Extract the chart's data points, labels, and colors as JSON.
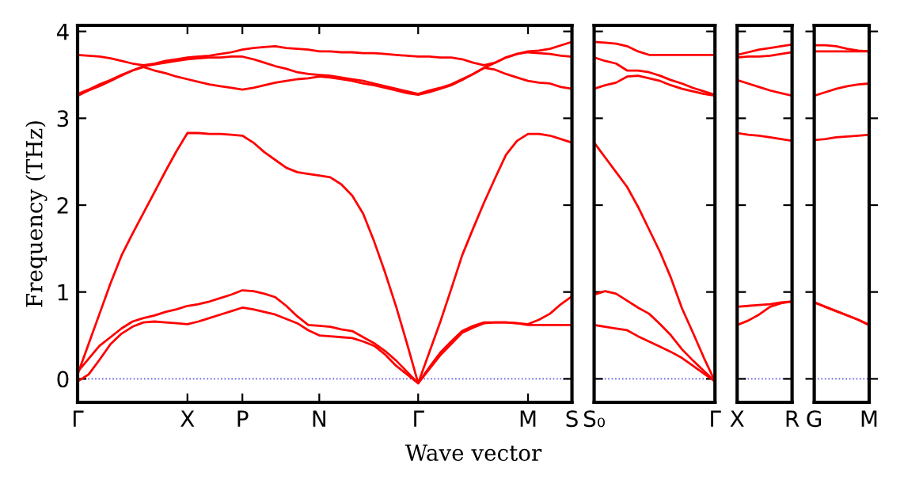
{
  "chart_data": [
    {
      "type": "line",
      "ylabel": "Frequency (THz)",
      "xlabel": "Wave vector",
      "categories": [
        "Γ",
        null,
        null,
        null,
        null,
        null,
        null,
        null,
        null,
        null,
        "X",
        null,
        null,
        null,
        null,
        "P",
        null,
        null,
        null,
        null,
        null,
        null,
        "N",
        null,
        null,
        null,
        null,
        null,
        null,
        null,
        null,
        "Γ",
        null,
        null,
        null,
        null,
        null,
        null,
        null,
        null,
        null,
        "M",
        null,
        null,
        null,
        "S"
      ],
      "ylim": [
        -0.27,
        4.07
      ],
      "yticks": [
        0,
        1,
        2,
        3,
        4
      ],
      "grid": false,
      "legend": false,
      "marker": "none",
      "line_style": "solid",
      "ref_lines": [
        {
          "axis": "y",
          "value": 0,
          "color": "#5555ee",
          "line_style": "dotted"
        }
      ],
      "series": [
        {
          "color": "#ff0000",
          "values": [
            -0.03,
            0.05,
            0.22,
            0.4,
            0.52,
            0.6,
            0.65,
            0.66,
            0.65,
            0.64,
            0.63,
            0.66,
            0.7,
            0.74,
            0.78,
            0.82,
            0.8,
            0.77,
            0.74,
            0.69,
            0.64,
            0.56,
            0.5,
            0.49,
            0.48,
            0.47,
            0.43,
            0.38,
            0.28,
            0.15,
            0.05,
            -0.05,
            0.11,
            0.27,
            0.4,
            0.53,
            0.59,
            0.64,
            0.65,
            0.65,
            0.64,
            0.62,
            0.62,
            0.62,
            0.62,
            0.62
          ]
        },
        {
          "color": "#ff0000",
          "values": [
            0.08,
            0.23,
            0.38,
            0.48,
            0.58,
            0.66,
            0.7,
            0.73,
            0.77,
            0.8,
            0.84,
            0.86,
            0.89,
            0.93,
            0.97,
            1.02,
            1.01,
            0.98,
            0.94,
            0.84,
            0.72,
            0.62,
            0.61,
            0.6,
            0.57,
            0.55,
            0.48,
            0.41,
            0.32,
            0.21,
            0.08,
            -0.05,
            0.13,
            0.3,
            0.43,
            0.55,
            0.61,
            0.65,
            0.65,
            0.65,
            0.64,
            0.63,
            0.68,
            0.75,
            0.86,
            0.95
          ]
        },
        {
          "color": "#ff0000",
          "values": [
            0.05,
            0.4,
            0.75,
            1.1,
            1.42,
            1.67,
            1.91,
            2.15,
            2.39,
            2.62,
            2.83,
            2.83,
            2.82,
            2.82,
            2.81,
            2.8,
            2.72,
            2.61,
            2.52,
            2.43,
            2.38,
            2.36,
            2.34,
            2.32,
            2.24,
            2.11,
            1.9,
            1.58,
            1.22,
            0.83,
            0.4,
            -0.05,
            0.3,
            0.65,
            1.03,
            1.42,
            1.73,
            2.03,
            2.31,
            2.58,
            2.74,
            2.82,
            2.82,
            2.8,
            2.76,
            2.72
          ]
        },
        {
          "color": "#ff0000",
          "values": [
            3.26,
            3.32,
            3.37,
            3.43,
            3.49,
            3.55,
            3.59,
            3.55,
            3.52,
            3.48,
            3.45,
            3.42,
            3.39,
            3.37,
            3.35,
            3.33,
            3.35,
            3.38,
            3.41,
            3.43,
            3.45,
            3.46,
            3.48,
            3.47,
            3.45,
            3.43,
            3.4,
            3.38,
            3.35,
            3.32,
            3.29,
            3.27,
            3.3,
            3.34,
            3.38,
            3.44,
            3.51,
            3.58,
            3.56,
            3.51,
            3.47,
            3.43,
            3.41,
            3.4,
            3.36,
            3.34
          ]
        },
        {
          "color": "#ff0000",
          "values": [
            3.28,
            3.33,
            3.39,
            3.44,
            3.5,
            3.55,
            3.6,
            3.62,
            3.64,
            3.66,
            3.68,
            3.69,
            3.7,
            3.7,
            3.71,
            3.71,
            3.68,
            3.64,
            3.6,
            3.57,
            3.53,
            3.51,
            3.5,
            3.49,
            3.47,
            3.45,
            3.43,
            3.4,
            3.37,
            3.34,
            3.31,
            3.28,
            3.32,
            3.35,
            3.39,
            3.45,
            3.51,
            3.58,
            3.64,
            3.7,
            3.74,
            3.76,
            3.75,
            3.74,
            3.72,
            3.71
          ]
        },
        {
          "color": "#ff0000",
          "values": [
            3.73,
            3.72,
            3.71,
            3.69,
            3.66,
            3.63,
            3.61,
            3.63,
            3.66,
            3.68,
            3.7,
            3.71,
            3.72,
            3.74,
            3.76,
            3.79,
            3.81,
            3.82,
            3.83,
            3.81,
            3.8,
            3.79,
            3.77,
            3.77,
            3.76,
            3.76,
            3.75,
            3.75,
            3.74,
            3.73,
            3.72,
            3.71,
            3.71,
            3.7,
            3.7,
            3.68,
            3.64,
            3.61,
            3.64,
            3.7,
            3.74,
            3.77,
            3.78,
            3.8,
            3.84,
            3.88
          ]
        }
      ]
    },
    {
      "type": "line",
      "categories": [
        "S₀",
        null,
        null,
        null,
        null,
        null,
        null,
        null,
        null,
        null,
        null,
        "Γ"
      ],
      "ylim": [
        -0.27,
        4.07
      ],
      "yticks": [
        0,
        1,
        2,
        3,
        4
      ],
      "tick_labels": "x",
      "grid": false,
      "legend": false,
      "marker": "none",
      "line_style": "solid",
      "ref_lines": [
        {
          "axis": "y",
          "value": 0,
          "color": "#5555ee",
          "line_style": "dotted"
        }
      ],
      "series": [
        {
          "color": "#ff0000",
          "values": [
            0.62,
            0.6,
            0.58,
            0.56,
            0.49,
            0.43,
            0.37,
            0.31,
            0.24,
            0.15,
            0.06,
            -0.03
          ]
        },
        {
          "color": "#ff0000",
          "values": [
            0.97,
            1.01,
            0.98,
            0.9,
            0.82,
            0.75,
            0.63,
            0.5,
            0.34,
            0.21,
            0.09,
            -0.03
          ]
        },
        {
          "color": "#ff0000",
          "values": [
            2.72,
            2.55,
            2.38,
            2.21,
            1.98,
            1.72,
            1.46,
            1.16,
            0.81,
            0.53,
            0.24,
            -0.03
          ]
        },
        {
          "color": "#ff0000",
          "values": [
            3.34,
            3.38,
            3.41,
            3.48,
            3.49,
            3.46,
            3.43,
            3.38,
            3.34,
            3.31,
            3.28,
            3.26
          ]
        },
        {
          "color": "#ff0000",
          "values": [
            3.7,
            3.66,
            3.63,
            3.55,
            3.55,
            3.53,
            3.49,
            3.44,
            3.4,
            3.35,
            3.31,
            3.27
          ]
        },
        {
          "color": "#ff0000",
          "values": [
            3.88,
            3.87,
            3.86,
            3.83,
            3.77,
            3.73,
            3.73,
            3.73,
            3.73,
            3.73,
            3.73,
            3.73
          ]
        }
      ]
    },
    {
      "type": "line",
      "categories": [
        "X",
        null,
        null,
        null,
        null,
        "R"
      ],
      "ylim": [
        -0.27,
        4.07
      ],
      "yticks": [
        0,
        1,
        2,
        3,
        4
      ],
      "tick_labels": "x",
      "grid": false,
      "legend": false,
      "marker": "none",
      "line_style": "solid",
      "ref_lines": [
        {
          "axis": "y",
          "value": 0,
          "color": "#5555ee",
          "line_style": "dotted"
        }
      ],
      "series": [
        {
          "color": "#ff0000",
          "values": [
            0.62,
            0.67,
            0.74,
            0.83,
            0.87,
            0.89
          ]
        },
        {
          "color": "#ff0000",
          "values": [
            0.83,
            0.84,
            0.85,
            0.86,
            0.88,
            0.89
          ]
        },
        {
          "color": "#ff0000",
          "values": [
            2.83,
            2.81,
            2.8,
            2.78,
            2.76,
            2.74
          ]
        },
        {
          "color": "#ff0000",
          "values": [
            3.44,
            3.4,
            3.36,
            3.32,
            3.29,
            3.26
          ]
        },
        {
          "color": "#ff0000",
          "values": [
            3.7,
            3.71,
            3.71,
            3.72,
            3.74,
            3.76
          ]
        },
        {
          "color": "#ff0000",
          "values": [
            3.73,
            3.76,
            3.79,
            3.81,
            3.83,
            3.85
          ]
        }
      ]
    },
    {
      "type": "line",
      "categories": [
        "G",
        null,
        null,
        null,
        null,
        "M"
      ],
      "ylim": [
        -0.27,
        4.07
      ],
      "yticks": [
        0,
        1,
        2,
        3,
        4
      ],
      "tick_labels": "x",
      "grid": false,
      "legend": false,
      "marker": "none",
      "line_style": "solid",
      "ref_lines": [
        {
          "axis": "y",
          "value": 0,
          "color": "#5555ee",
          "line_style": "dotted"
        }
      ],
      "series": [
        {
          "color": "#ff0000",
          "values": [
            0.88,
            0.83,
            0.78,
            0.73,
            0.68,
            0.62
          ]
        },
        {
          "color": "#ff0000",
          "values": [
            0.88,
            0.83,
            0.78,
            0.73,
            0.68,
            0.62
          ]
        },
        {
          "color": "#ff0000",
          "values": [
            2.75,
            2.76,
            2.78,
            2.79,
            2.8,
            2.81
          ]
        },
        {
          "color": "#ff0000",
          "values": [
            3.26,
            3.3,
            3.34,
            3.37,
            3.39,
            3.4
          ]
        },
        {
          "color": "#ff0000",
          "values": [
            3.77,
            3.77,
            3.77,
            3.77,
            3.77,
            3.77
          ]
        },
        {
          "color": "#ff0000",
          "values": [
            3.84,
            3.84,
            3.83,
            3.8,
            3.78,
            3.77
          ]
        }
      ]
    }
  ]
}
